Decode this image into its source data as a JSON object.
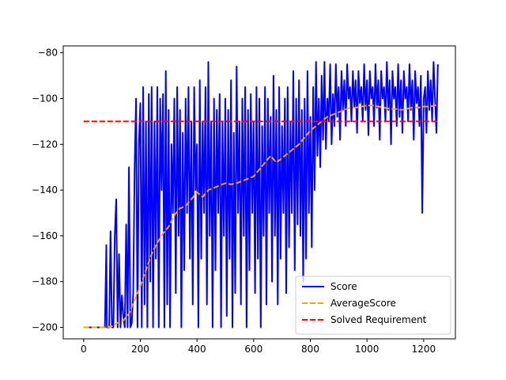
{
  "chart_data": {
    "type": "line",
    "xlim": [
      -72,
      1312
    ],
    "ylim": [
      -205,
      -77
    ],
    "x_ticks": [
      0,
      200,
      400,
      600,
      800,
      1000,
      1200
    ],
    "y_ticks": [
      -200,
      -180,
      -160,
      -140,
      -120,
      -100,
      -80
    ],
    "grid": false,
    "legend": {
      "placement": "lower-right",
      "entries": [
        "Score",
        "AverageScore",
        "Solved Requirement"
      ]
    },
    "series": [
      {
        "name": "Score",
        "color": "#0000ff",
        "style": "solid",
        "note": "per-episode score, x = 0..1250",
        "x": [
          0,
          40,
          75,
          80,
          82,
          86,
          90,
          95,
          100,
          105,
          110,
          115,
          120,
          125,
          130,
          135,
          140,
          145,
          150,
          155,
          160,
          165,
          170,
          175,
          180,
          185,
          190,
          195,
          200,
          205,
          210,
          215,
          220,
          225,
          230,
          235,
          240,
          245,
          250,
          255,
          260,
          265,
          270,
          275,
          280,
          285,
          290,
          295,
          300,
          305,
          310,
          315,
          320,
          325,
          330,
          335,
          340,
          345,
          350,
          355,
          360,
          365,
          370,
          375,
          380,
          385,
          390,
          395,
          400,
          405,
          410,
          415,
          420,
          425,
          430,
          435,
          440,
          445,
          450,
          455,
          460,
          465,
          470,
          475,
          480,
          485,
          490,
          495,
          500,
          505,
          510,
          515,
          520,
          525,
          530,
          535,
          540,
          545,
          550,
          555,
          560,
          565,
          570,
          575,
          580,
          585,
          590,
          595,
          600,
          605,
          610,
          615,
          620,
          625,
          630,
          635,
          640,
          645,
          650,
          655,
          660,
          665,
          670,
          675,
          680,
          685,
          690,
          695,
          700,
          705,
          710,
          715,
          720,
          725,
          730,
          735,
          740,
          745,
          750,
          755,
          760,
          765,
          770,
          775,
          780,
          785,
          790,
          795,
          800,
          805,
          810,
          815,
          820,
          825,
          830,
          835,
          840,
          845,
          850,
          855,
          860,
          865,
          870,
          875,
          880,
          885,
          890,
          895,
          900,
          905,
          910,
          915,
          920,
          925,
          930,
          935,
          940,
          945,
          950,
          955,
          960,
          965,
          970,
          975,
          980,
          985,
          990,
          995,
          1000,
          1005,
          1010,
          1015,
          1020,
          1025,
          1030,
          1035,
          1040,
          1045,
          1050,
          1055,
          1060,
          1065,
          1070,
          1075,
          1080,
          1085,
          1090,
          1095,
          1100,
          1105,
          1110,
          1115,
          1120,
          1125,
          1130,
          1135,
          1140,
          1145,
          1150,
          1155,
          1160,
          1165,
          1170,
          1175,
          1180,
          1185,
          1190,
          1195,
          1200,
          1205,
          1210,
          1215,
          1220,
          1225,
          1230,
          1235,
          1240,
          1245,
          1250
        ],
        "y": [
          -200,
          -200,
          -200,
          -164,
          -200,
          -200,
          -200,
          -158,
          -200,
          -200,
          -160,
          -144,
          -200,
          -168,
          -200,
          -186,
          -195,
          -200,
          -155,
          -200,
          -130,
          -200,
          -198,
          -185,
          -130,
          -100,
          -200,
          -120,
          -102,
          -200,
          -95,
          -190,
          -110,
          -200,
          -98,
          -180,
          -95,
          -200,
          -110,
          -170,
          -95,
          -200,
          -100,
          -140,
          -98,
          -200,
          -88,
          -190,
          -105,
          -200,
          -120,
          -150,
          -100,
          -185,
          -95,
          -160,
          -105,
          -200,
          -115,
          -175,
          -100,
          -150,
          -95,
          -170,
          -110,
          -190,
          -95,
          -140,
          -120,
          -200,
          -92,
          -170,
          -110,
          -150,
          -95,
          -190,
          -84,
          -160,
          -110,
          -200,
          -100,
          -175,
          -105,
          -150,
          -98,
          -200,
          -110,
          -160,
          -100,
          -195,
          -105,
          -170,
          -92,
          -200,
          -115,
          -185,
          -86,
          -150,
          -110,
          -190,
          -100,
          -160,
          -95,
          -200,
          -105,
          -175,
          -98,
          -150,
          -110,
          -185,
          -95,
          -170,
          -100,
          -200,
          -112,
          -160,
          -95,
          -190,
          -100,
          -150,
          -108,
          -180,
          -90,
          -160,
          -105,
          -190,
          -95,
          -170,
          -112,
          -150,
          -100,
          -185,
          -95,
          -165,
          -110,
          -150,
          -88,
          -175,
          -100,
          -155,
          -92,
          -160,
          -105,
          -180,
          -100,
          -170,
          -88,
          -150,
          -108,
          -165,
          -95,
          -140,
          -84,
          -125,
          -100,
          -130,
          -90,
          -118,
          -84,
          -122,
          -100,
          -110,
          -85,
          -120,
          -98,
          -112,
          -85,
          -108,
          -95,
          -118,
          -88,
          -105,
          -92,
          -112,
          -85,
          -100,
          -95,
          -110,
          -88,
          -104,
          -92,
          -115,
          -88,
          -102,
          -95,
          -110,
          -85,
          -105,
          -92,
          -116,
          -88,
          -100,
          -95,
          -112,
          -85,
          -104,
          -92,
          -118,
          -88,
          -100,
          -95,
          -110,
          -84,
          -105,
          -92,
          -120,
          -88,
          -100,
          -95,
          -112,
          -85,
          -108,
          -92,
          -115,
          -88,
          -100,
          -95,
          -110,
          -85,
          -105,
          -92,
          -118,
          -88,
          -102,
          -95,
          -112,
          -90,
          -150,
          -100,
          -95,
          -115,
          -88,
          -105,
          -92,
          -110,
          -84,
          -100,
          -115,
          -85
        ]
      },
      {
        "name": "AverageScore",
        "color": "#ffa500",
        "style": "dashed",
        "x": [
          0,
          60,
          80,
          100,
          120,
          140,
          160,
          180,
          200,
          220,
          240,
          260,
          280,
          300,
          320,
          340,
          360,
          380,
          400,
          420,
          440,
          460,
          480,
          500,
          520,
          540,
          560,
          580,
          600,
          620,
          640,
          660,
          680,
          700,
          720,
          740,
          760,
          780,
          800,
          820,
          840,
          860,
          880,
          900,
          920,
          940,
          960,
          980,
          1000,
          1020,
          1040,
          1060,
          1080,
          1100,
          1120,
          1140,
          1160,
          1180,
          1200,
          1220,
          1240,
          1250
        ],
        "y": [
          -200,
          -200,
          -200,
          -199.5,
          -198,
          -197,
          -194,
          -188,
          -182,
          -175,
          -168,
          -163,
          -159,
          -156,
          -151,
          -148,
          -147,
          -144,
          -141,
          -143,
          -140,
          -139,
          -138,
          -137,
          -137.5,
          -137,
          -136,
          -135,
          -134,
          -131,
          -128,
          -125,
          -128,
          -126,
          -124,
          -122,
          -120,
          -117,
          -114,
          -112,
          -110,
          -108,
          -107,
          -106,
          -105,
          -104,
          -104,
          -103.5,
          -103,
          -103,
          -103.5,
          -104,
          -104.5,
          -104.5,
          -105,
          -104.5,
          -104,
          -104,
          -103.5,
          -103.5,
          -103,
          -102.5
        ]
      },
      {
        "name": "Solved Requirement",
        "color": "#ff0000",
        "style": "dashed",
        "x": [
          0,
          1250
        ],
        "y": [
          -110,
          -110
        ]
      }
    ]
  }
}
